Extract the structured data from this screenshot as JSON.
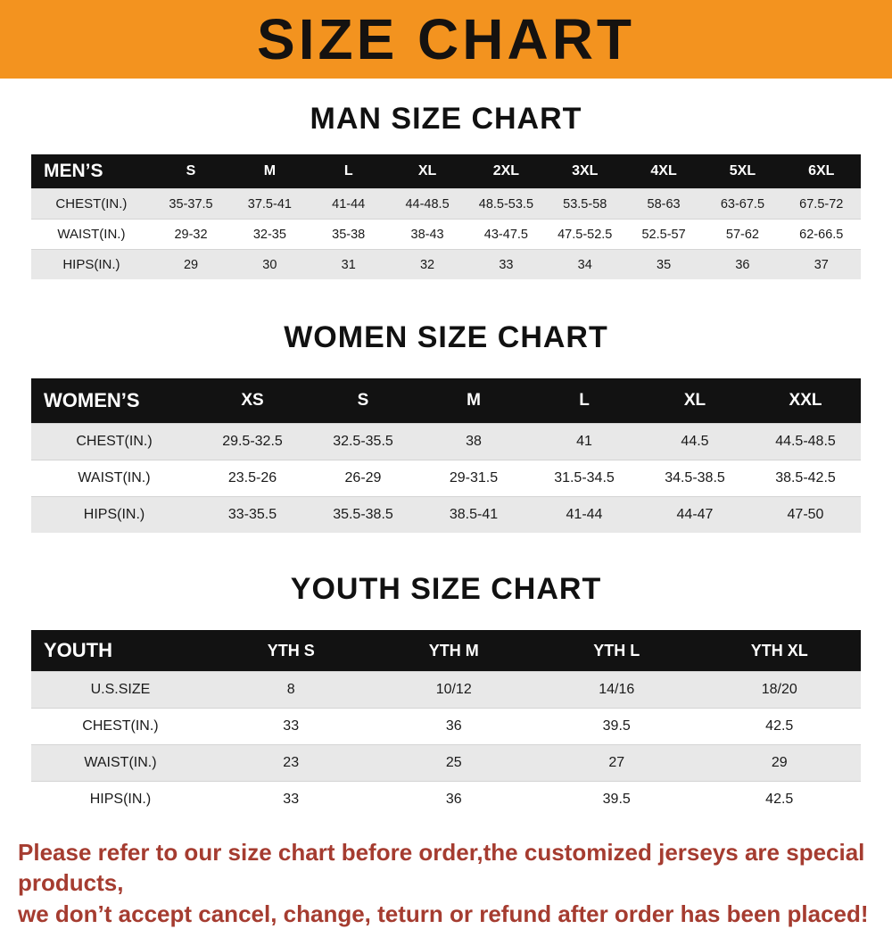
{
  "banner": {
    "title": "SIZE CHART",
    "bg_color": "#f3931f",
    "text_color": "#151210"
  },
  "sections": [
    {
      "heading": "MAN SIZE CHART",
      "table": {
        "label": "MEN’S",
        "columns": [
          "S",
          "M",
          "L",
          "XL",
          "2XL",
          "3XL",
          "4XL",
          "5XL",
          "6XL"
        ],
        "rows": [
          {
            "label": "CHEST(IN.)",
            "values": [
              "35-37.5",
              "37.5-41",
              "41-44",
              "44-48.5",
              "48.5-53.5",
              "53.5-58",
              "58-63",
              "63-67.5",
              "67.5-72"
            ]
          },
          {
            "label": "WAIST(IN.)",
            "values": [
              "29-32",
              "32-35",
              "35-38",
              "38-43",
              "43-47.5",
              "47.5-52.5",
              "52.5-57",
              "57-62",
              "62-66.5"
            ]
          },
          {
            "label": "HIPS(IN.)",
            "values": [
              "29",
              "30",
              "31",
              "32",
              "33",
              "34",
              "35",
              "36",
              "37"
            ]
          }
        ]
      }
    },
    {
      "heading": "WOMEN SIZE CHART",
      "table": {
        "label": "WOMEN’S",
        "columns": [
          "XS",
          "S",
          "M",
          "L",
          "XL",
          "XXL"
        ],
        "rows": [
          {
            "label": "CHEST(IN.)",
            "values": [
              "29.5-32.5",
              "32.5-35.5",
              "38",
              "41",
              "44.5",
              "44.5-48.5"
            ]
          },
          {
            "label": "WAIST(IN.)",
            "values": [
              "23.5-26",
              "26-29",
              "29-31.5",
              "31.5-34.5",
              "34.5-38.5",
              "38.5-42.5"
            ]
          },
          {
            "label": "HIPS(IN.)",
            "values": [
              "33-35.5",
              "35.5-38.5",
              "38.5-41",
              "41-44",
              "44-47",
              "47-50"
            ]
          }
        ]
      }
    },
    {
      "heading": "YOUTH SIZE CHART",
      "table": {
        "label": "YOUTH",
        "columns": [
          "YTH S",
          "YTH M",
          "YTH L",
          "YTH XL"
        ],
        "rows": [
          {
            "label": "U.S.SIZE",
            "values": [
              "8",
              "10/12",
              "14/16",
              "18/20"
            ]
          },
          {
            "label": "CHEST(IN.)",
            "values": [
              "33",
              "36",
              "39.5",
              "42.5"
            ]
          },
          {
            "label": "WAIST(IN.)",
            "values": [
              "23",
              "25",
              "27",
              "29"
            ]
          },
          {
            "label": "HIPS(IN.)",
            "values": [
              "33",
              "36",
              "39.5",
              "42.5"
            ]
          }
        ]
      }
    }
  ],
  "footer": {
    "line1": "Please refer to our size chart before order,the customized jerseys are special products,",
    "line2": "we don’t accept cancel, change, teturn or refund after order has been placed!",
    "text_color": "#a53c30"
  }
}
